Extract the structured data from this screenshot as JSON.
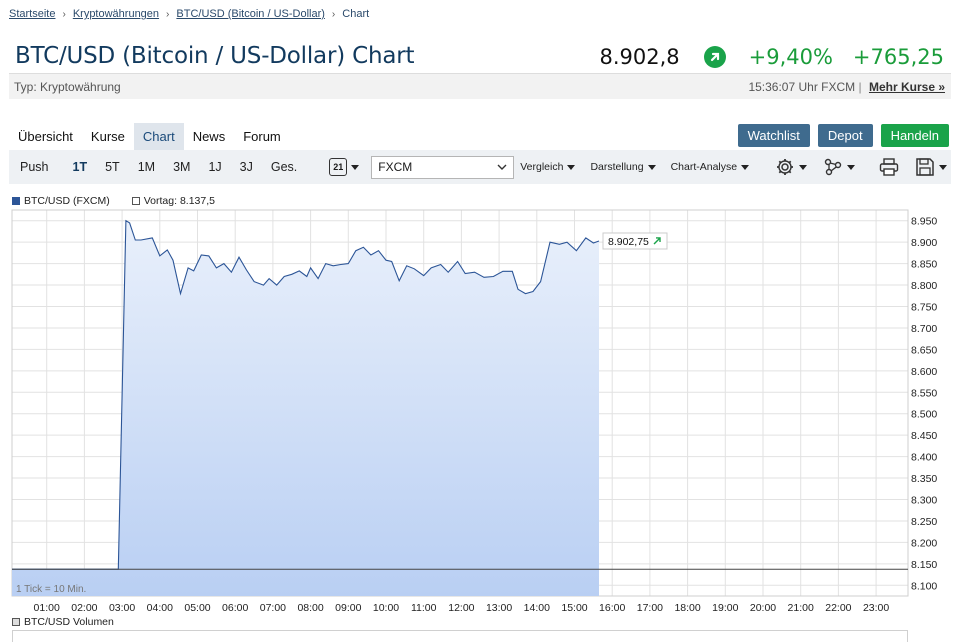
{
  "breadcrumb": {
    "items": [
      "Startseite",
      "Kryptowährungen",
      "BTC/USD (Bitcoin / US-Dollar)"
    ],
    "current": "Chart"
  },
  "header": {
    "title": "BTC/USD (Bitcoin / US-Dollar) Chart",
    "price": "8.902,8",
    "change_pct": "+9,40%",
    "change_abs": "+765,25",
    "up_color": "#1a9c3a"
  },
  "subbar": {
    "type": "Typ: Kryptowährung",
    "timestamp": "15:36:07 Uhr FXCM",
    "separator": "|",
    "more_link": "Mehr Kurse »"
  },
  "tabs": [
    {
      "label": "Übersicht",
      "active": false
    },
    {
      "label": "Kurse",
      "active": false
    },
    {
      "label": "Chart",
      "active": true
    },
    {
      "label": "News",
      "active": false
    },
    {
      "label": "Forum",
      "active": false
    }
  ],
  "actions": {
    "watchlist": "Watchlist",
    "depot": "Depot",
    "handeln": "Handeln"
  },
  "toolbar": {
    "ranges": [
      "Push",
      "1T",
      "5T",
      "1M",
      "3M",
      "1J",
      "3J",
      "Ges."
    ],
    "active_range": "1T",
    "calendar_day": "21",
    "exchange": "FXCM",
    "vergleich": "Vergleich",
    "darstellung": "Darstellung",
    "analyse": "Chart-Analyse",
    "icons": [
      "settings-icon",
      "network-icon",
      "print-icon",
      "save-icon"
    ]
  },
  "legend": {
    "series": "BTC/USD (FXCM)",
    "previous": "Vortag: 8.137,5"
  },
  "volume_legend": "BTC/USD Volumen",
  "chart_data": {
    "type": "area",
    "ylim": [
      8075,
      8975
    ],
    "yticks": [
      "8.950",
      "8.900",
      "8.850",
      "8.800",
      "8.750",
      "8.700",
      "8.650",
      "8.600",
      "8.550",
      "8.500",
      "8.450",
      "8.400",
      "8.350",
      "8.300",
      "8.250",
      "8.200",
      "8.150",
      "8.100"
    ],
    "xticks": [
      "01:00",
      "02:00",
      "03:00",
      "04:00",
      "05:00",
      "06:00",
      "07:00",
      "08:00",
      "09:00",
      "10:00",
      "11:00",
      "12:00",
      "13:00",
      "14:00",
      "15:00",
      "16:00",
      "17:00",
      "18:00",
      "19:00",
      "20:00",
      "21:00",
      "22:00",
      "23:00"
    ],
    "previous_close": 8137.5,
    "last_label": "8.902,75",
    "tick_note": "1 Tick = 10 Min.",
    "x_hours": [
      0.1,
      2.9,
      3.1,
      3.2,
      3.35,
      3.5,
      3.8,
      4.0,
      4.2,
      4.35,
      4.55,
      4.75,
      4.9,
      5.1,
      5.3,
      5.5,
      5.7,
      5.9,
      6.1,
      6.3,
      6.5,
      6.75,
      6.9,
      7.1,
      7.3,
      7.5,
      7.7,
      7.9,
      8.0,
      8.2,
      8.4,
      8.6,
      8.8,
      9.0,
      9.2,
      9.4,
      9.6,
      9.8,
      10.0,
      10.15,
      10.35,
      10.55,
      10.75,
      11.0,
      11.2,
      11.45,
      11.65,
      11.9,
      12.1,
      12.35,
      12.6,
      12.85,
      13.1,
      13.35,
      13.5,
      13.7,
      13.9,
      14.1,
      14.35,
      14.6,
      14.8,
      15.05,
      15.3,
      15.5,
      15.65
    ],
    "values": [
      8137.5,
      8137.5,
      8950,
      8945,
      8905,
      8905,
      8910,
      8868,
      8882,
      8858,
      8780,
      8840,
      8833,
      8870,
      8868,
      8840,
      8850,
      8830,
      8865,
      8835,
      8808,
      8800,
      8815,
      8800,
      8820,
      8825,
      8833,
      8820,
      8840,
      8815,
      8850,
      8845,
      8848,
      8850,
      8880,
      8888,
      8870,
      8880,
      8858,
      8855,
      8810,
      8845,
      8838,
      8822,
      8840,
      8848,
      8830,
      8855,
      8827,
      8830,
      8818,
      8820,
      8832,
      8832,
      8790,
      8780,
      8785,
      8808,
      8900,
      8895,
      8900,
      8880,
      8910,
      8898,
      8902.75
    ]
  }
}
